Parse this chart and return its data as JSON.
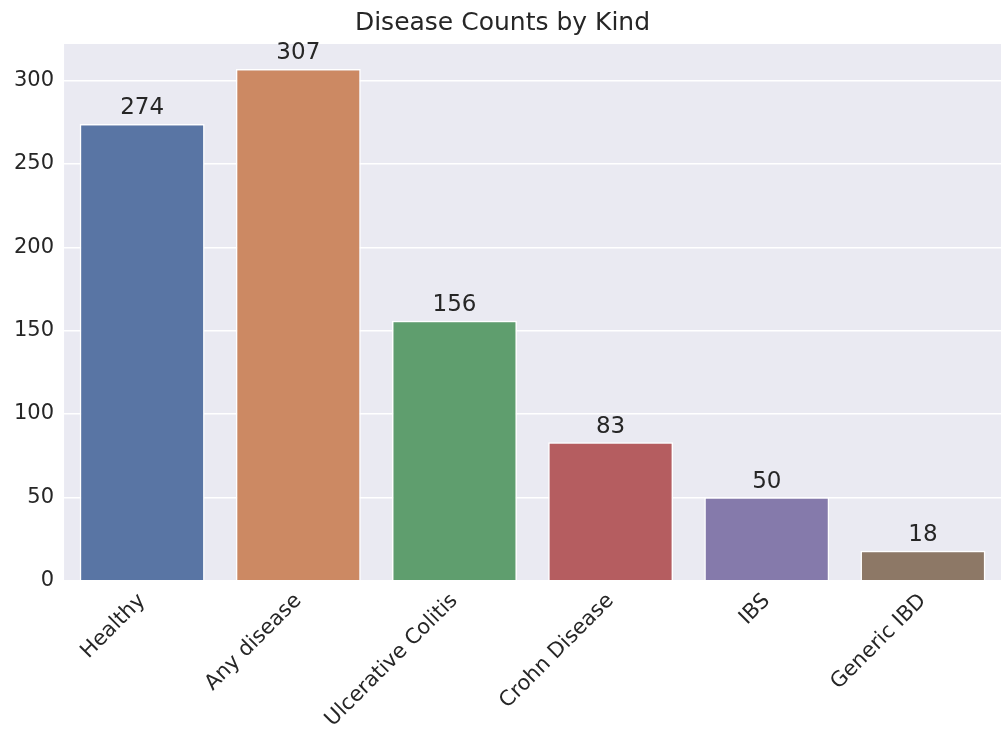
{
  "chart_data": {
    "type": "bar",
    "title": "Disease Counts by Kind",
    "categories": [
      "Healthy",
      "Any disease",
      "Ulcerative Colitis",
      "Crohn Disease",
      "IBS",
      "Generic IBD"
    ],
    "values": [
      274,
      307,
      156,
      83,
      50,
      18
    ],
    "colors": [
      "#5975a4",
      "#cc8963",
      "#5f9e6e",
      "#b55d60",
      "#857aab",
      "#8d7866"
    ],
    "ylim": [
      0,
      322
    ],
    "yticks": [
      0,
      50,
      100,
      150,
      200,
      250,
      300
    ],
    "grid": "y",
    "data_labels": true
  }
}
